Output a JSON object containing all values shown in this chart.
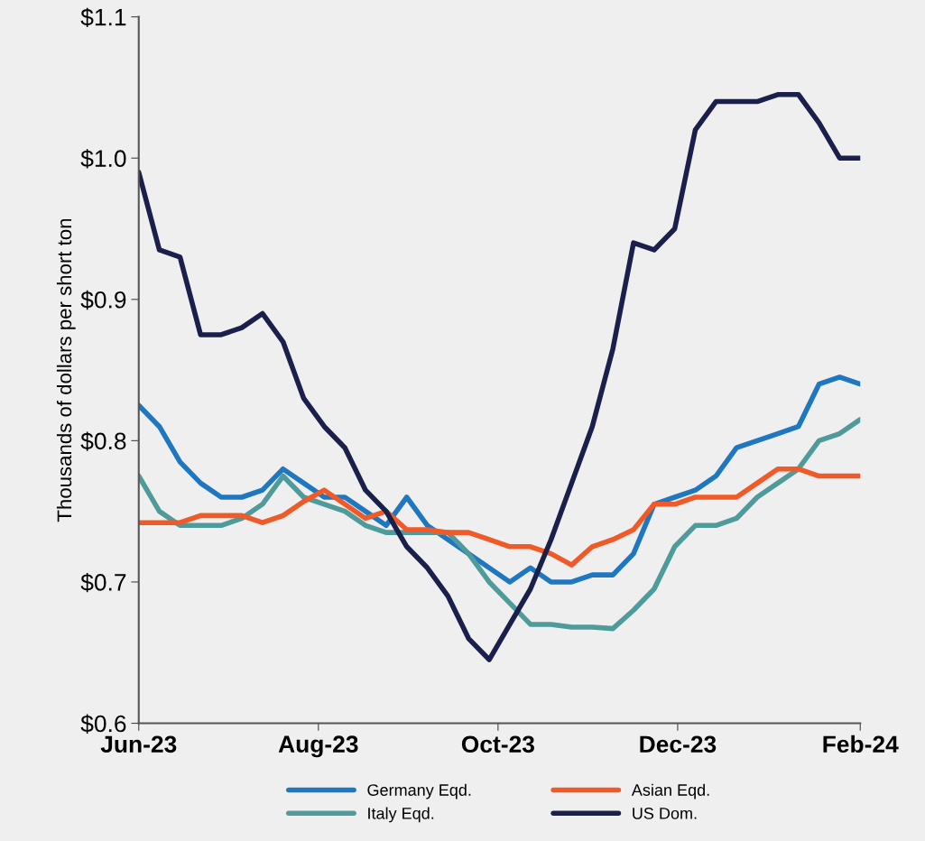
{
  "chart_data": {
    "type": "line",
    "ylabel": "Thousands of dollars per short ton",
    "x": [
      "2023-06-01",
      "2023-06-08",
      "2023-06-15",
      "2023-06-22",
      "2023-06-29",
      "2023-07-06",
      "2023-07-13",
      "2023-07-20",
      "2023-07-27",
      "2023-08-03",
      "2023-08-10",
      "2023-08-17",
      "2023-08-24",
      "2023-08-31",
      "2023-09-07",
      "2023-09-14",
      "2023-09-21",
      "2023-09-28",
      "2023-10-05",
      "2023-10-12",
      "2023-10-19",
      "2023-10-26",
      "2023-11-02",
      "2023-11-09",
      "2023-11-16",
      "2023-11-23",
      "2023-11-30",
      "2023-12-07",
      "2023-12-14",
      "2023-12-21",
      "2023-12-28",
      "2024-01-04",
      "2024-01-11",
      "2024-01-18",
      "2024-01-25",
      "2024-02-01"
    ],
    "series": [
      {
        "name": "Germany Eqd.",
        "color": "#1f77c0",
        "values": [
          0.825,
          0.81,
          0.785,
          0.77,
          0.76,
          0.76,
          0.765,
          0.78,
          0.77,
          0.76,
          0.76,
          0.75,
          0.74,
          0.76,
          0.74,
          0.73,
          0.72,
          0.71,
          0.7,
          0.71,
          0.7,
          0.7,
          0.705,
          0.705,
          0.72,
          0.755,
          0.76,
          0.765,
          0.775,
          0.795,
          0.8,
          0.805,
          0.81,
          0.84,
          0.845,
          0.84
        ]
      },
      {
        "name": "Italy Eqd.",
        "color": "#4f9a9a",
        "values": [
          0.775,
          0.75,
          0.74,
          0.74,
          0.74,
          0.745,
          0.755,
          0.775,
          0.76,
          0.755,
          0.75,
          0.74,
          0.735,
          0.735,
          0.735,
          0.735,
          0.72,
          0.7,
          0.685,
          0.67,
          0.67,
          0.668,
          0.668,
          0.667,
          0.68,
          0.695,
          0.725,
          0.74,
          0.74,
          0.745,
          0.76,
          0.77,
          0.78,
          0.8,
          0.805,
          0.815
        ]
      },
      {
        "name": "Asian Eqd.",
        "color": "#f05a28",
        "values": [
          0.742,
          0.742,
          0.742,
          0.747,
          0.747,
          0.747,
          0.742,
          0.747,
          0.757,
          0.765,
          0.755,
          0.745,
          0.75,
          0.737,
          0.737,
          0.735,
          0.735,
          0.73,
          0.725,
          0.725,
          0.72,
          0.712,
          0.725,
          0.73,
          0.737,
          0.755,
          0.755,
          0.76,
          0.76,
          0.76,
          0.77,
          0.78,
          0.78,
          0.775,
          0.775,
          0.775
        ]
      },
      {
        "name": "US Dom.",
        "color": "#1b1f4b",
        "values": [
          0.99,
          0.935,
          0.93,
          0.875,
          0.875,
          0.88,
          0.89,
          0.87,
          0.83,
          0.81,
          0.795,
          0.765,
          0.75,
          0.725,
          0.71,
          0.69,
          0.66,
          0.645,
          0.67,
          0.695,
          0.73,
          0.77,
          0.81,
          0.865,
          0.94,
          0.935,
          0.95,
          1.02,
          1.04,
          1.04,
          1.04,
          1.045,
          1.045,
          1.025,
          1.0,
          1.0
        ]
      }
    ],
    "xlim": [
      "2023-06-01",
      "2024-02-01"
    ],
    "xticks": [
      {
        "value": "2023-06-01",
        "label": "Jun-23"
      },
      {
        "value": "2023-08-01",
        "label": "Aug-23"
      },
      {
        "value": "2023-10-01",
        "label": "Oct-23"
      },
      {
        "value": "2023-12-01",
        "label": "Dec-23"
      },
      {
        "value": "2024-02-01",
        "label": "Feb-24"
      }
    ],
    "ylim": [
      0.6,
      1.1
    ],
    "yticks": [
      {
        "value": 0.6,
        "label": "$0.6"
      },
      {
        "value": 0.7,
        "label": "$0.7"
      },
      {
        "value": 0.8,
        "label": "$0.8"
      },
      {
        "value": 0.9,
        "label": "$0.9"
      },
      {
        "value": 1.0,
        "label": "$1.0"
      },
      {
        "value": 1.1,
        "label": "$1.1"
      }
    ],
    "grid": false,
    "legend": "bottom",
    "marker": "none",
    "line_style": "solid"
  }
}
